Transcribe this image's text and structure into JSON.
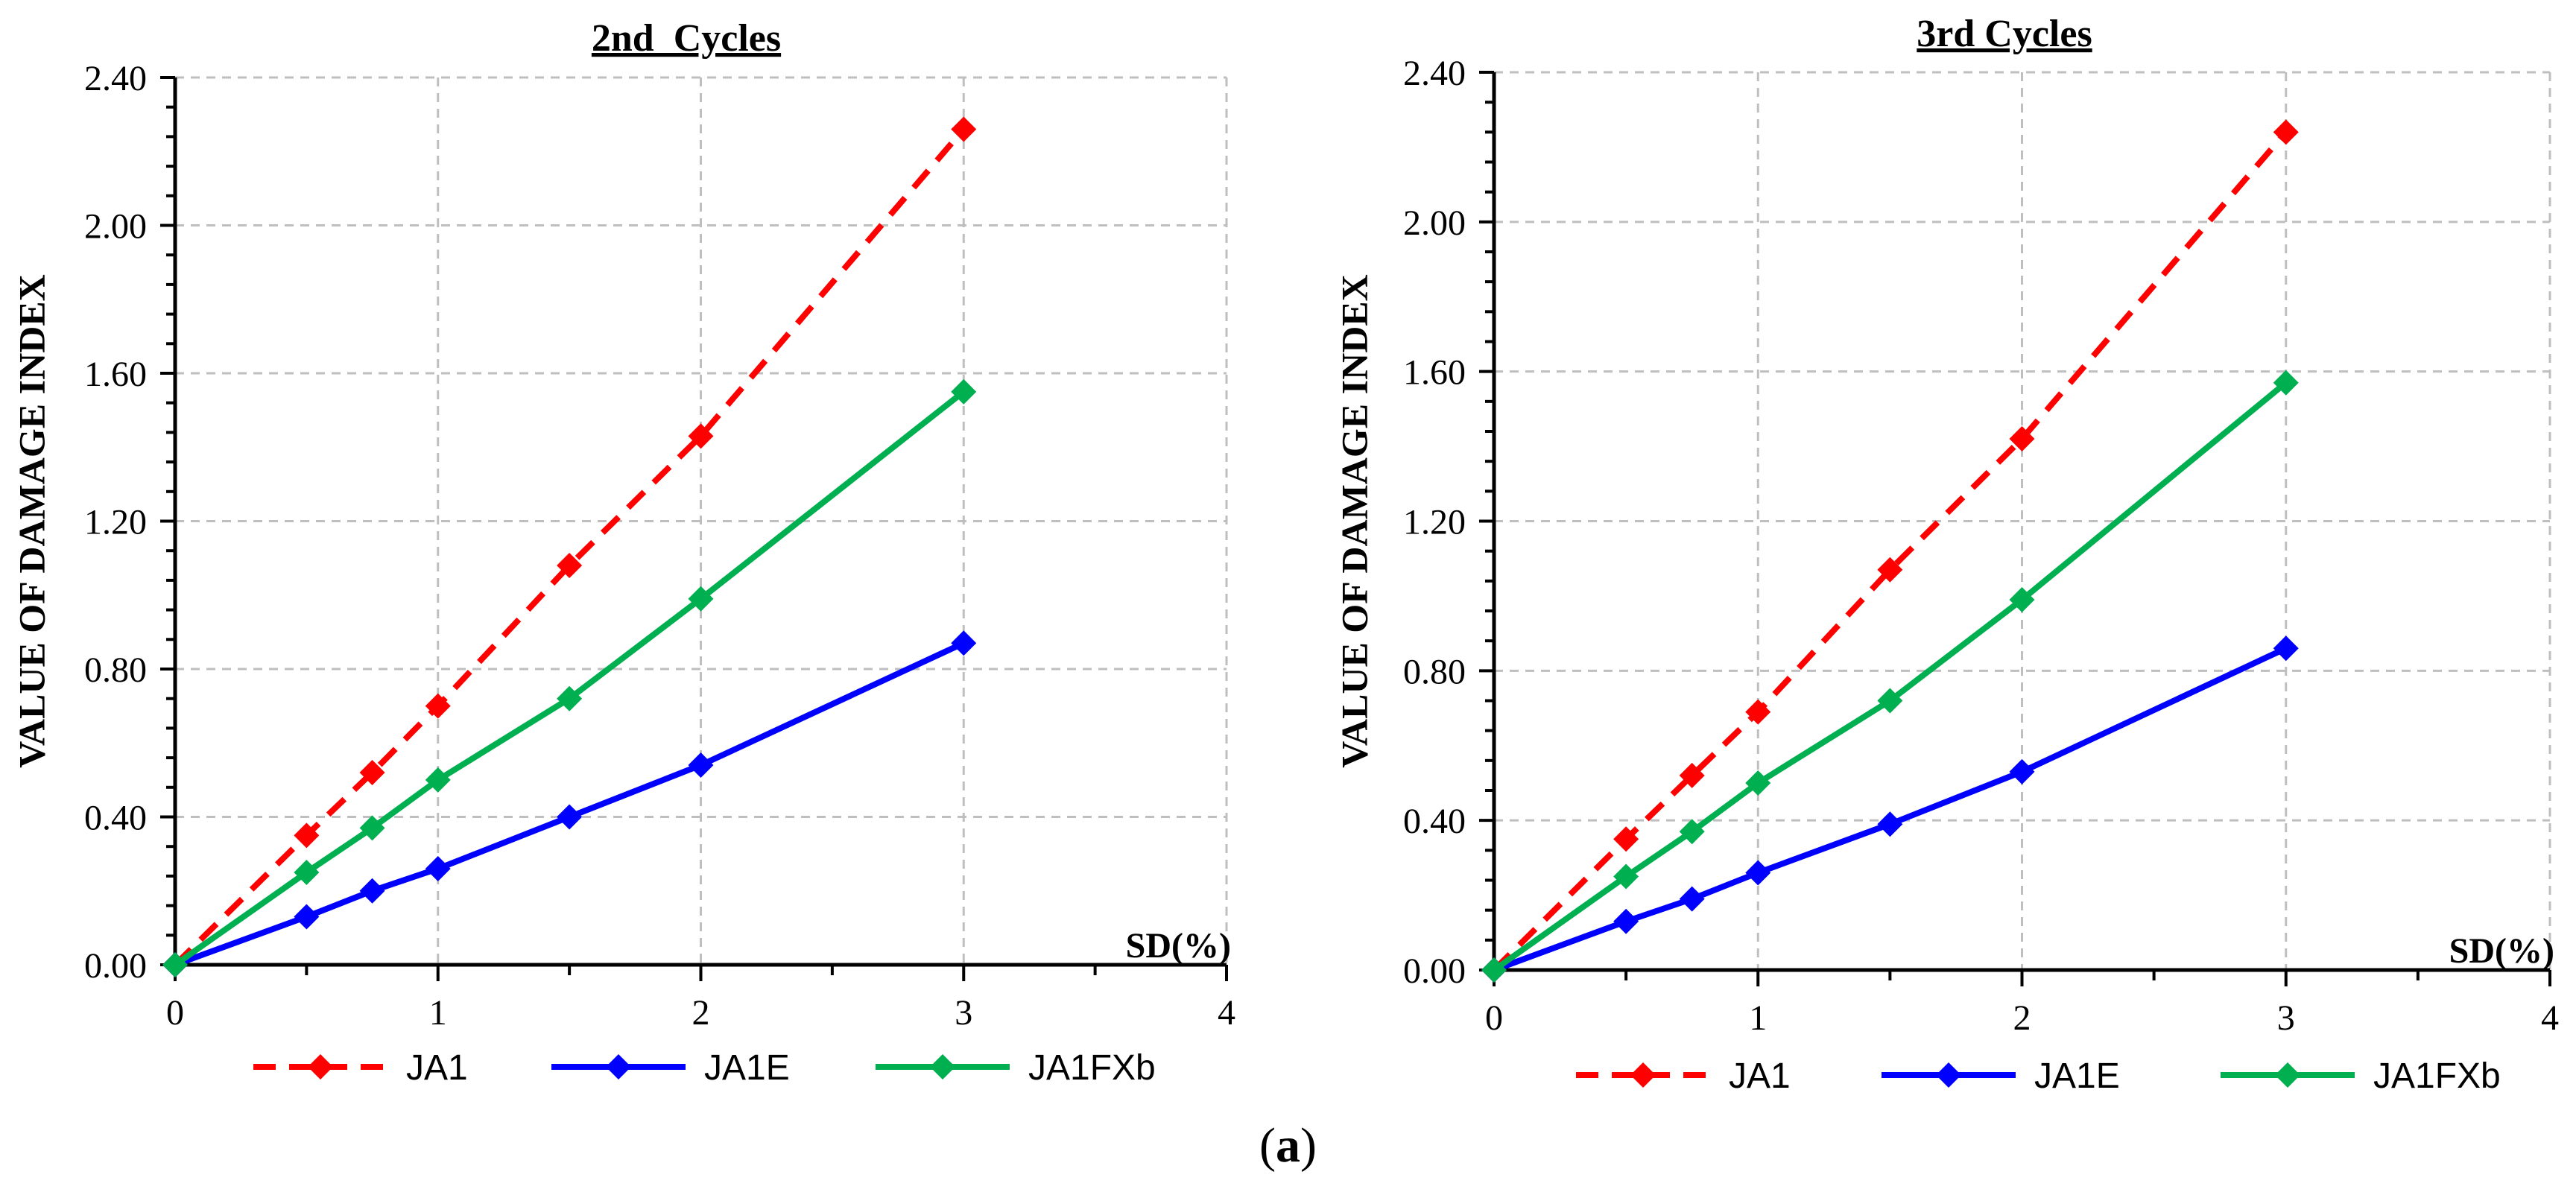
{
  "figure": {
    "caption_open": "(",
    "caption_label": "a",
    "caption_close": ")"
  },
  "chart_data": [
    {
      "type": "line",
      "title": "2nd  Cycles",
      "xlabel": "SD(%)",
      "ylabel": "VALUE OF DAMAGE INDEX",
      "xlim": [
        0,
        4
      ],
      "ylim": [
        0,
        2.4
      ],
      "xticks": [
        "0",
        "1",
        "2",
        "3",
        "4"
      ],
      "yticks": [
        "0.00",
        "0.40",
        "0.80",
        "1.20",
        "1.60",
        "2.00",
        "2.40"
      ],
      "grid": true,
      "legend_position": "bottom",
      "x": [
        0,
        0.5,
        0.75,
        1,
        1.5,
        2,
        3
      ],
      "series": [
        {
          "name": "JA1",
          "color": "#ff0000",
          "dash": true,
          "values": [
            0,
            0.35,
            0.52,
            0.7,
            1.08,
            1.43,
            2.26
          ]
        },
        {
          "name": "JA1E",
          "color": "#0000ff",
          "dash": false,
          "values": [
            0,
            0.13,
            0.2,
            0.26,
            0.4,
            0.54,
            0.87
          ]
        },
        {
          "name": "JA1FXb",
          "color": "#00b050",
          "dash": false,
          "values": [
            0,
            0.25,
            0.37,
            0.5,
            0.72,
            0.99,
            1.55
          ]
        }
      ]
    },
    {
      "type": "line",
      "title": "3rd Cycles",
      "xlabel": "SD(%)",
      "ylabel": "VALUE OF DAMAGE INDEX",
      "xlim": [
        0,
        4
      ],
      "ylim": [
        0,
        2.4
      ],
      "xticks": [
        "0",
        "1",
        "2",
        "3",
        "4"
      ],
      "yticks": [
        "0.00",
        "0.40",
        "0.80",
        "1.20",
        "1.60",
        "2.00",
        "2.40"
      ],
      "grid": true,
      "legend_position": "bottom",
      "x": [
        0,
        0.5,
        0.75,
        1,
        1.5,
        2,
        3
      ],
      "series": [
        {
          "name": "JA1",
          "color": "#ff0000",
          "dash": true,
          "values": [
            0,
            0.35,
            0.52,
            0.69,
            1.07,
            1.42,
            2.24
          ]
        },
        {
          "name": "JA1E",
          "color": "#0000ff",
          "dash": false,
          "values": [
            0,
            0.13,
            0.19,
            0.26,
            0.39,
            0.53,
            0.86
          ]
        },
        {
          "name": "JA1FXb",
          "color": "#00b050",
          "dash": false,
          "values": [
            0,
            0.25,
            0.37,
            0.5,
            0.72,
            0.99,
            1.57
          ]
        }
      ]
    }
  ]
}
